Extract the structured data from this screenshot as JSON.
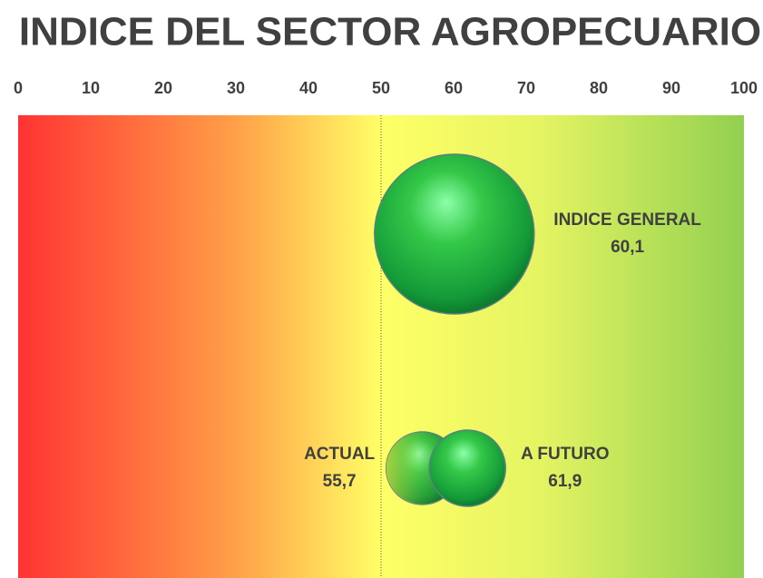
{
  "chart_data": {
    "type": "bubble",
    "title": "INDICE DEL SECTOR AGROPECUARIO",
    "xlim": [
      0,
      100
    ],
    "xticks": [
      0,
      10,
      20,
      30,
      40,
      50,
      60,
      70,
      80,
      90,
      100
    ],
    "reference_line": 50,
    "series": [
      {
        "name": "INDICE GENERAL",
        "values": [
          60.1
        ],
        "value_labels": [
          "60,1"
        ]
      },
      {
        "name": "ACTUAL",
        "values": [
          55.7
        ],
        "value_labels": [
          "55,7"
        ]
      },
      {
        "name": "A FUTURO",
        "values": [
          61.9
        ],
        "value_labels": [
          "61,9"
        ]
      }
    ]
  }
}
